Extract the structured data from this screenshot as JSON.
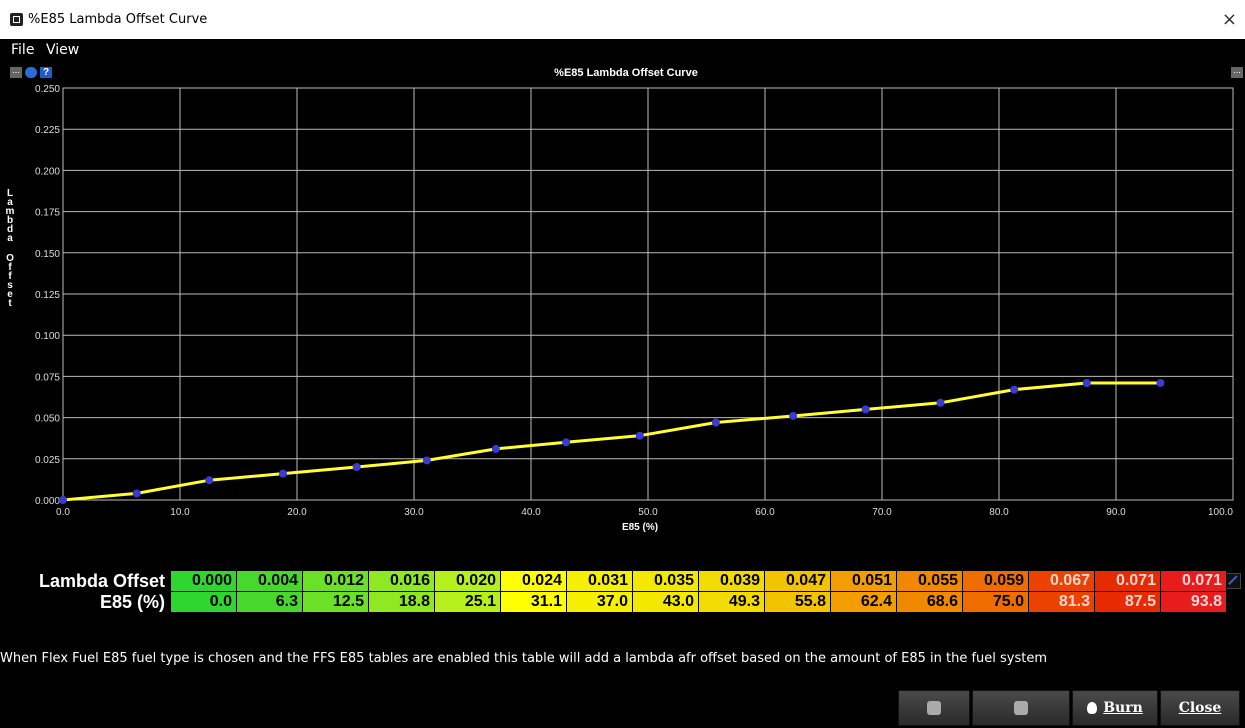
{
  "window": {
    "title": "%E85 Lambda Offset Curve",
    "close_glyph": "×"
  },
  "menu": [
    {
      "label": "File"
    },
    {
      "label": "View"
    }
  ],
  "chart_data": {
    "type": "line",
    "title": "%E85 Lambda Offset Curve",
    "xlabel": "E85 (%)",
    "ylabel": "Lambda Offset",
    "xlim": [
      0,
      100
    ],
    "ylim": [
      0,
      0.25
    ],
    "x_ticks": [
      "0.0",
      "10.0",
      "20.0",
      "30.0",
      "40.0",
      "50.0",
      "60.0",
      "70.0",
      "80.0",
      "90.0",
      "100.0"
    ],
    "y_ticks": [
      "0.000",
      "0.025",
      "0.050",
      "0.075",
      "0.100",
      "0.125",
      "0.150",
      "0.175",
      "0.200",
      "0.225",
      "0.250"
    ],
    "grid": true,
    "line_color": "#ffff33",
    "point_color": "#3a3ad8",
    "series": [
      {
        "x": [
          0.0,
          6.3,
          12.5,
          18.8,
          25.1,
          31.1,
          37.0,
          43.0,
          49.3,
          55.8,
          62.4,
          68.6,
          75.0,
          81.3,
          87.5,
          93.8
        ],
        "y": [
          0.0,
          0.004,
          0.012,
          0.016,
          0.02,
          0.024,
          0.031,
          0.035,
          0.039,
          0.047,
          0.051,
          0.055,
          0.059,
          0.067,
          0.071,
          0.071
        ]
      }
    ]
  },
  "table": {
    "row_labels": [
      "Lambda Offset",
      "E85 (%)"
    ],
    "offsets": [
      "0.000",
      "0.004",
      "0.012",
      "0.016",
      "0.020",
      "0.024",
      "0.031",
      "0.035",
      "0.039",
      "0.047",
      "0.051",
      "0.055",
      "0.059",
      "0.067",
      "0.071",
      "0.071"
    ],
    "e85": [
      "0.0",
      "6.3",
      "12.5",
      "18.8",
      "25.1",
      "31.1",
      "37.0",
      "43.0",
      "49.3",
      "55.8",
      "62.4",
      "68.6",
      "75.0",
      "81.3",
      "87.5",
      "93.8"
    ],
    "cell_colors": [
      "#2fd62f",
      "#46d92c",
      "#6ae126",
      "#8ee822",
      "#b6f01c",
      "#ffff00",
      "#f5f000",
      "#f2e800",
      "#f2db00",
      "#f2c400",
      "#f29e00",
      "#f08800",
      "#ef6c00",
      "#ec4200",
      "#e82a00",
      "#e81c1c"
    ],
    "buttons": [
      "equal-icon",
      "arrow-up-icon",
      "arrow-down-icon",
      "minus-icon",
      "plus-icon",
      "multiply-icon",
      "pen-icon"
    ]
  },
  "description": "When Flex Fuel E85 fuel type is chosen and the FFS E85 tables are enabled this table will add a lambda afr offset based on the amount of E85 in the fuel system",
  "buttons": {
    "undo_icon": "undo-icon",
    "redo_icon": "redo-icon",
    "burn": "Burn",
    "close": "Close"
  }
}
